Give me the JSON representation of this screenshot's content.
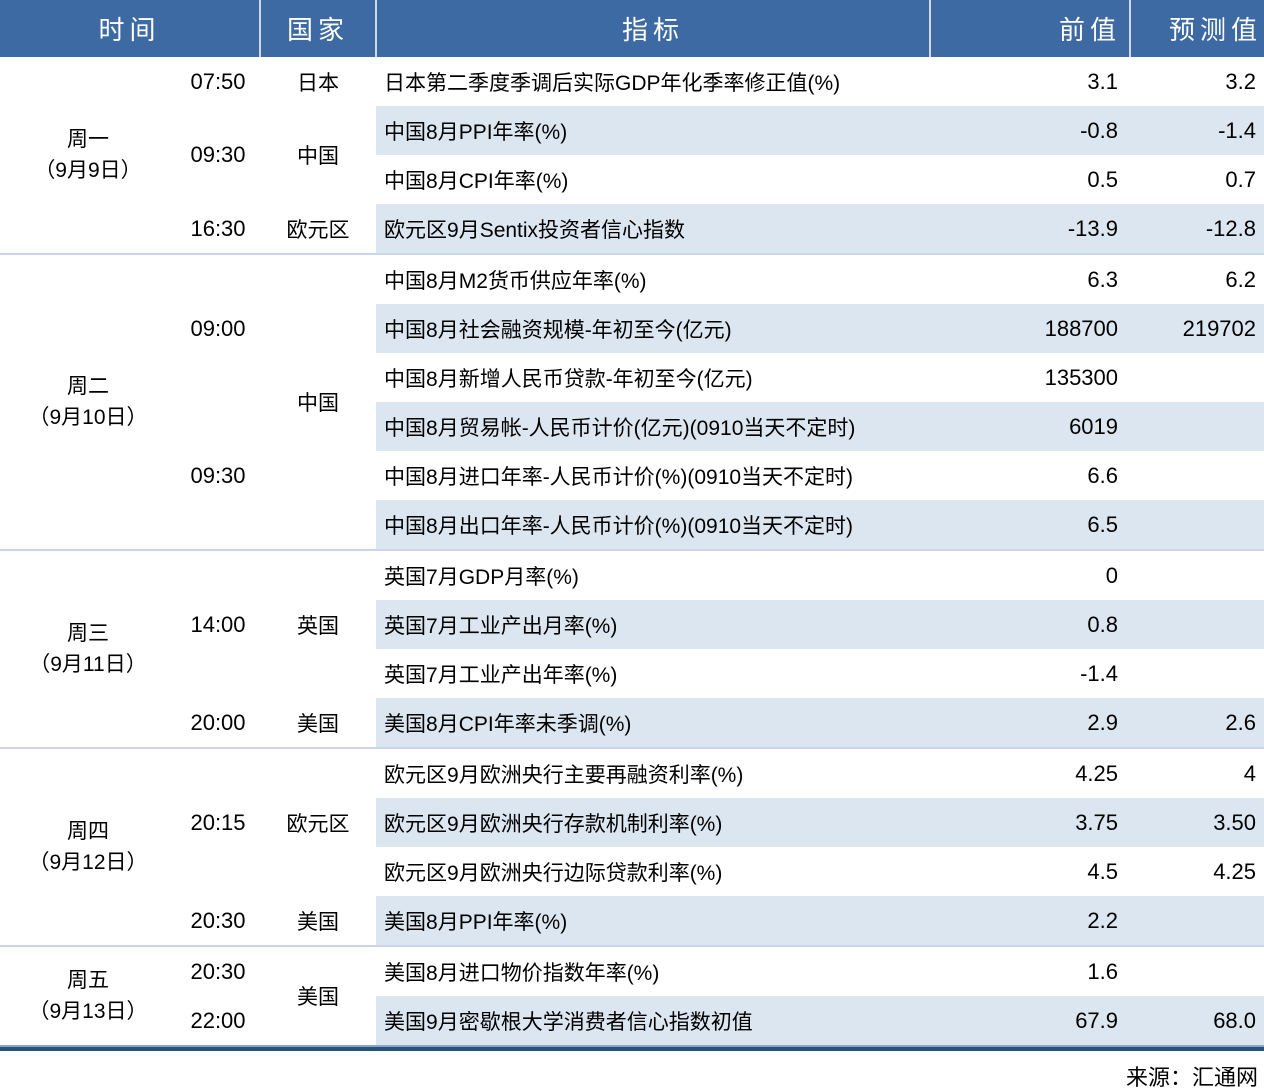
{
  "colors": {
    "header_bg": "#3d6aa3",
    "header_text": "#ffffff",
    "row_stripe": "#dce6f1",
    "group_divider": "#c9d6e8",
    "bottom_rule": "#26527c",
    "body_text": "#000000"
  },
  "source_note": "来源：汇通网",
  "chart_data": {
    "type": "table",
    "columns": [
      "时间",
      "国家",
      "指标",
      "前值",
      "预测值"
    ],
    "groups": [
      {
        "day": "周一",
        "date": "（9月9日）",
        "times": [
          {
            "label": "07:50",
            "span": 1
          },
          {
            "label": "09:30",
            "span": 2
          },
          {
            "label": "16:30",
            "span": 1
          }
        ],
        "countries": [
          {
            "label": "日本",
            "span": 1
          },
          {
            "label": "中国",
            "span": 2
          },
          {
            "label": "欧元区",
            "span": 1
          }
        ],
        "rows": [
          {
            "indicator": "日本第二季度季调后实际GDP年化季率修正值(%)",
            "previous": "3.1",
            "forecast": "3.2"
          },
          {
            "indicator": "中国8月PPI年率(%)",
            "previous": "-0.8",
            "forecast": "-1.4"
          },
          {
            "indicator": "中国8月CPI年率(%)",
            "previous": "0.5",
            "forecast": "0.7"
          },
          {
            "indicator": "欧元区9月Sentix投资者信心指数",
            "previous": "-13.9",
            "forecast": "-12.8"
          }
        ]
      },
      {
        "day": "周二",
        "date": "（9月10日）",
        "times": [
          {
            "label": "09:00",
            "span": 3
          },
          {
            "label": "09:30",
            "span": 3
          }
        ],
        "countries": [
          {
            "label": "中国",
            "span": 6
          }
        ],
        "rows": [
          {
            "indicator": "中国8月M2货币供应年率(%)",
            "previous": "6.3",
            "forecast": "6.2"
          },
          {
            "indicator": "中国8月社会融资规模-年初至今(亿元)",
            "previous": "188700",
            "forecast": "219702"
          },
          {
            "indicator": "中国8月新增人民币贷款-年初至今(亿元)",
            "previous": "135300",
            "forecast": ""
          },
          {
            "indicator": "中国8月贸易帐-人民币计价(亿元)(0910当天不定时)",
            "previous": "6019",
            "forecast": ""
          },
          {
            "indicator": "中国8月进口年率-人民币计价(%)(0910当天不定时)",
            "previous": "6.6",
            "forecast": ""
          },
          {
            "indicator": "中国8月出口年率-人民币计价(%)(0910当天不定时)",
            "previous": "6.5",
            "forecast": ""
          }
        ]
      },
      {
        "day": "周三",
        "date": "（9月11日）",
        "times": [
          {
            "label": "14:00",
            "span": 3
          },
          {
            "label": "20:00",
            "span": 1
          }
        ],
        "countries": [
          {
            "label": "英国",
            "span": 3
          },
          {
            "label": "美国",
            "span": 1
          }
        ],
        "rows": [
          {
            "indicator": "英国7月GDP月率(%)",
            "previous": "0",
            "forecast": ""
          },
          {
            "indicator": "英国7月工业产出月率(%)",
            "previous": "0.8",
            "forecast": ""
          },
          {
            "indicator": "英国7月工业产出年率(%)",
            "previous": "-1.4",
            "forecast": ""
          },
          {
            "indicator": "美国8月CPI年率未季调(%)",
            "previous": "2.9",
            "forecast": "2.6"
          }
        ]
      },
      {
        "day": "周四",
        "date": "（9月12日）",
        "times": [
          {
            "label": "20:15",
            "span": 3
          },
          {
            "label": "20:30",
            "span": 1
          }
        ],
        "countries": [
          {
            "label": "欧元区",
            "span": 3
          },
          {
            "label": "美国",
            "span": 1
          }
        ],
        "rows": [
          {
            "indicator": "欧元区9月欧洲央行主要再融资利率(%)",
            "previous": "4.25",
            "forecast": "4"
          },
          {
            "indicator": "欧元区9月欧洲央行存款机制利率(%)",
            "previous": "3.75",
            "forecast": "3.50"
          },
          {
            "indicator": "欧元区9月欧洲央行边际贷款利率(%)",
            "previous": "4.5",
            "forecast": "4.25"
          },
          {
            "indicator": "美国8月PPI年率(%)",
            "previous": "2.2",
            "forecast": ""
          }
        ]
      },
      {
        "day": "周五",
        "date": "（9月13日）",
        "times": [
          {
            "label": "20:30",
            "span": 1
          },
          {
            "label": "22:00",
            "span": 1
          }
        ],
        "countries": [
          {
            "label": "美国",
            "span": 2
          }
        ],
        "rows": [
          {
            "indicator": "美国8月进口物价指数年率(%)",
            "previous": "1.6",
            "forecast": ""
          },
          {
            "indicator": "美国9月密歇根大学消费者信心指数初值",
            "previous": "67.9",
            "forecast": "68.0"
          }
        ]
      }
    ]
  }
}
